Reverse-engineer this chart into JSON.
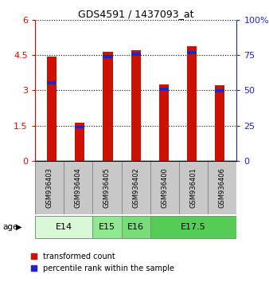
{
  "title": "GDS4591 / 1437093_at",
  "samples": [
    "GSM936403",
    "GSM936404",
    "GSM936405",
    "GSM936402",
    "GSM936400",
    "GSM936401",
    "GSM936406"
  ],
  "red_values": [
    4.45,
    1.62,
    4.62,
    4.72,
    3.26,
    4.86,
    3.22
  ],
  "blue_values": [
    3.38,
    1.5,
    4.5,
    4.6,
    3.1,
    4.68,
    3.05
  ],
  "age_groups": [
    {
      "label": "E14",
      "start": 0,
      "end": 2,
      "color": "#d8f8d8"
    },
    {
      "label": "E15",
      "start": 2,
      "end": 3,
      "color": "#90e890"
    },
    {
      "label": "E16",
      "start": 3,
      "end": 4,
      "color": "#78dc78"
    },
    {
      "label": "E17.5",
      "start": 4,
      "end": 7,
      "color": "#55cc55"
    }
  ],
  "ylim_left": [
    0,
    6
  ],
  "ylim_right": [
    0,
    100
  ],
  "yticks_left": [
    0,
    1.5,
    3,
    4.5,
    6
  ],
  "yticks_right": [
    0,
    25,
    50,
    75,
    100
  ],
  "bar_color_red": "#cc1100",
  "bar_color_blue": "#2222cc",
  "grid_color": "black",
  "legend_red": "transformed count",
  "legend_blue": "percentile rank within the sample",
  "bar_width": 0.35,
  "sample_box_color": "#c8c8c8",
  "blue_bar_height": 0.13
}
